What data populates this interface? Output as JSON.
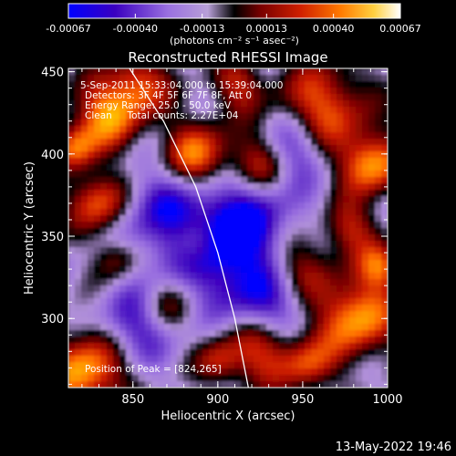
{
  "chart_data": {
    "type": "heatmap",
    "title": "Reconstructed RHESSI Image",
    "xlabel": "Heliocentric X (arcsec)",
    "ylabel": "Heliocentric Y (arcsec)",
    "xlim": [
      812,
      1000
    ],
    "ylim": [
      258,
      452
    ],
    "x_ticks": [
      "850",
      "900",
      "950",
      "1000"
    ],
    "x_tick_values": [
      850,
      900,
      950,
      1000
    ],
    "y_ticks": [
      "300",
      "350",
      "400",
      "450"
    ],
    "y_tick_values": [
      300,
      350,
      400,
      450
    ],
    "colorbar": {
      "range": [
        -0.00067,
        0.00067
      ],
      "ticks": [
        "-0.00067",
        "-0.00040",
        "-0.00013",
        "0.00013",
        "0.00040",
        "0.00067"
      ],
      "tick_values": [
        -0.00067,
        -0.0004,
        -0.00013,
        0.00013,
        0.0004,
        0.00067
      ],
      "unit": "(photons cm⁻² s⁻¹ asec⁻²)"
    },
    "annotations": [
      "5-Sep-2011 15:33:04.000 to 15:39:04.000",
      "Detectors: 3F 4F 5F 6F 7F 8F, Att 0",
      "Energy Range: 25.0 - 50.0 keV",
      "Clean     Total counts: 2.27E+04"
    ],
    "peak_label": "Position of Peak = [824,265]",
    "peak_position": [
      824,
      265
    ],
    "limb_curve": [
      [
        848,
        452
      ],
      [
        868,
        420
      ],
      [
        887,
        380
      ],
      [
        900,
        340
      ],
      [
        910,
        300
      ],
      [
        918,
        258
      ]
    ],
    "grid": false
  },
  "footer": {
    "timestamp": "13-May-2022 19:46"
  },
  "colors": {
    "background": "#000000",
    "text": "#ffffff",
    "colormap": [
      "#0000ff",
      "#3a00c0",
      "#6a3acc",
      "#9a70e0",
      "#b090d8",
      "#000000",
      "#7a0000",
      "#c81a00",
      "#ff6a00",
      "#ffc000",
      "#ffffff"
    ]
  }
}
